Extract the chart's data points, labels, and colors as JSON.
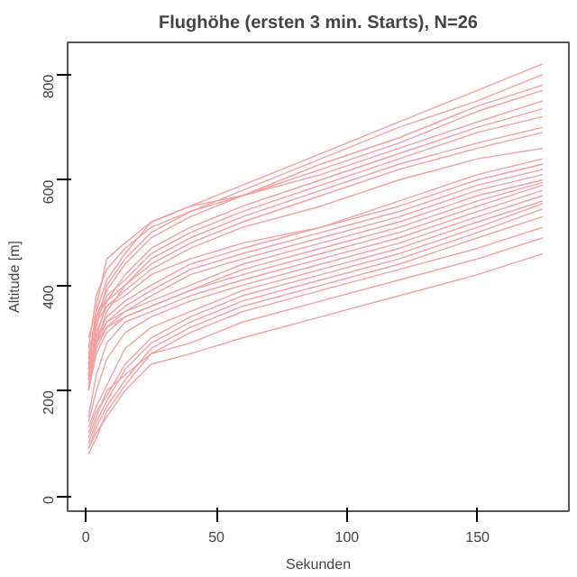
{
  "chart_data": {
    "type": "line",
    "title": "Flughöhe (ersten 3 min. Starts), N=26",
    "xlabel": "Sekunden",
    "ylabel": "Altitude [m]",
    "x": [
      1,
      4,
      8,
      15,
      25,
      40,
      60,
      90,
      120,
      150,
      175
    ],
    "xlim": [
      -7,
      185
    ],
    "ylim": [
      -29,
      861
    ],
    "xticks": [
      0,
      50,
      100,
      150
    ],
    "yticks": [
      0,
      200,
      400,
      600,
      800
    ],
    "grid": false,
    "line_style": "solid",
    "marker": "none",
    "series": [
      {
        "color": "#f4a0a0",
        "values": [
          240,
          360,
          450,
          480,
          520,
          550,
          590,
          650,
          710,
          770,
          820
        ]
      },
      {
        "color": "#f4a0a0",
        "values": [
          280,
          380,
          430,
          470,
          510,
          540,
          580,
          640,
          700,
          750,
          800
        ]
      },
      {
        "color": "#f4a0a0",
        "values": [
          230,
          320,
          400,
          450,
          500,
          540,
          570,
          630,
          680,
          740,
          780
        ]
      },
      {
        "color": "#f4a0a0",
        "values": [
          260,
          340,
          390,
          440,
          490,
          530,
          570,
          620,
          670,
          730,
          770
        ]
      },
      {
        "color": "#f4a0a0",
        "values": [
          300,
          350,
          410,
          460,
          520,
          550,
          570,
          610,
          660,
          710,
          750
        ]
      },
      {
        "color": "#f4a0a0",
        "values": [
          220,
          300,
          370,
          420,
          470,
          510,
          550,
          600,
          650,
          700,
          735
        ]
      },
      {
        "color": "#f4a0a0",
        "values": [
          250,
          330,
          380,
          410,
          460,
          500,
          540,
          590,
          640,
          690,
          720
        ]
      },
      {
        "color": "#f4a0a0",
        "values": [
          200,
          290,
          350,
          400,
          450,
          490,
          530,
          580,
          630,
          670,
          700
        ]
      },
      {
        "color": "#f4a0a0",
        "values": [
          270,
          340,
          370,
          400,
          440,
          480,
          520,
          570,
          620,
          660,
          690
        ]
      },
      {
        "color": "#f4a0a0",
        "values": [
          230,
          310,
          360,
          390,
          430,
          470,
          510,
          550,
          600,
          640,
          660
        ]
      },
      {
        "color": "#f4a0a0",
        "values": [
          260,
          330,
          360,
          380,
          420,
          450,
          480,
          510,
          560,
          610,
          640
        ]
      },
      {
        "color": "#f4a0a0",
        "values": [
          240,
          300,
          340,
          370,
          400,
          440,
          470,
          510,
          550,
          600,
          630
        ]
      },
      {
        "color": "#f4a0a0",
        "values": [
          220,
          290,
          330,
          360,
          390,
          430,
          460,
          500,
          540,
          590,
          620
        ]
      },
      {
        "color": "#f4a0a0",
        "values": [
          210,
          280,
          320,
          350,
          380,
          420,
          450,
          490,
          530,
          580,
          610
        ]
      },
      {
        "color": "#f4a0a0",
        "values": [
          250,
          300,
          330,
          350,
          370,
          400,
          440,
          480,
          520,
          570,
          600
        ]
      },
      {
        "color": "#f4a0a0",
        "values": [
          230,
          290,
          320,
          340,
          360,
          390,
          430,
          470,
          510,
          560,
          595
        ]
      },
      {
        "color": "#f4a0a0",
        "values": [
          200,
          270,
          310,
          340,
          360,
          390,
          420,
          460,
          500,
          550,
          590
        ]
      },
      {
        "color": "#f4a0a0",
        "values": [
          150,
          230,
          290,
          330,
          350,
          380,
          410,
          450,
          490,
          540,
          580
        ]
      },
      {
        "color": "#f4a0a0",
        "values": [
          140,
          200,
          260,
          310,
          340,
          370,
          400,
          440,
          480,
          530,
          570
        ]
      },
      {
        "color": "#f4a0a0",
        "values": [
          130,
          170,
          210,
          280,
          320,
          350,
          390,
          430,
          470,
          520,
          560
        ]
      },
      {
        "color": "#f4a0a0",
        "values": [
          120,
          160,
          190,
          250,
          300,
          340,
          380,
          420,
          460,
          510,
          555
        ]
      },
      {
        "color": "#f4a0a0",
        "values": [
          100,
          140,
          180,
          240,
          290,
          330,
          370,
          410,
          450,
          500,
          545
        ]
      },
      {
        "color": "#f4a0a0",
        "values": [
          90,
          130,
          170,
          220,
          280,
          320,
          360,
          400,
          440,
          490,
          530
        ]
      },
      {
        "color": "#f4a0a0",
        "values": [
          80,
          110,
          160,
          210,
          270,
          310,
          350,
          390,
          430,
          470,
          510
        ]
      },
      {
        "color": "#f4a0a0",
        "values": [
          110,
          150,
          200,
          230,
          270,
          290,
          330,
          370,
          410,
          450,
          490
        ]
      },
      {
        "color": "#f4a0a0",
        "values": [
          90,
          120,
          150,
          200,
          250,
          270,
          300,
          340,
          380,
          420,
          460
        ]
      }
    ]
  }
}
